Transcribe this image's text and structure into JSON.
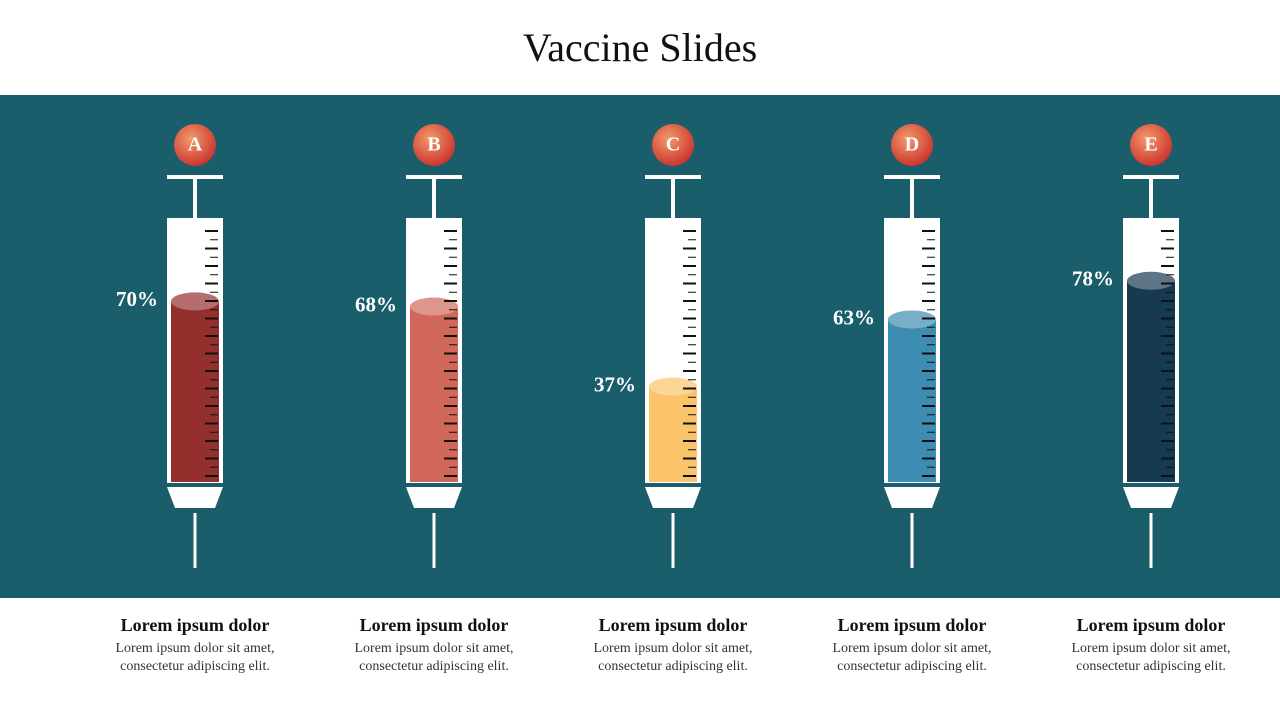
{
  "chart_data": {
    "type": "syringe",
    "title": "Vaccine Slides",
    "categories": [
      "A",
      "B",
      "C",
      "D",
      "E"
    ],
    "values": [
      70,
      68,
      37,
      63,
      78
    ],
    "value_labels": [
      "70%",
      "68%",
      "37%",
      "63%",
      "78%"
    ],
    "colors": [
      "#93302e",
      "#d0675a",
      "#fcc46a",
      "#3d8cb2",
      "#173a50"
    ],
    "ylim": [
      0,
      100
    ],
    "captions": [
      {
        "heading": "Lorem ipsum dolor",
        "text": "Lorem ipsum dolor sit amet, consectetur adipiscing elit."
      },
      {
        "heading": "Lorem ipsum dolor",
        "text": "Lorem ipsum dolor sit amet, consectetur adipiscing elit."
      },
      {
        "heading": "Lorem ipsum dolor",
        "text": "Lorem ipsum dolor sit amet, consectetur adipiscing elit."
      },
      {
        "heading": "Lorem ipsum dolor",
        "text": "Lorem ipsum dolor sit amet, consectetur adipiscing elit."
      },
      {
        "heading": "Lorem ipsum dolor",
        "text": "Lorem ipsum dolor sit amet, consectetur adipiscing elit."
      }
    ]
  }
}
